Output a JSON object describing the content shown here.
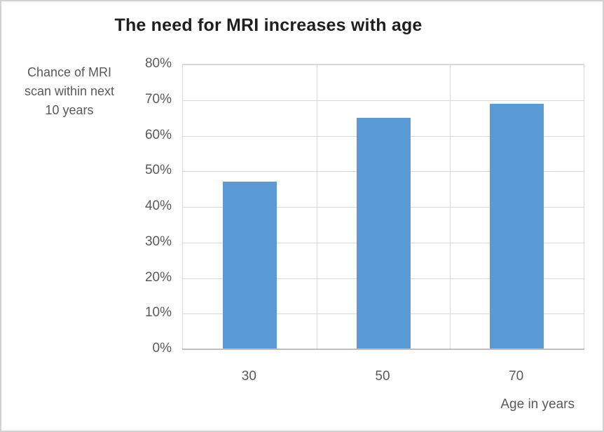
{
  "chart": {
    "title": "The need for MRI increases with age",
    "y_axis_title": {
      "line1": "Chance of MRI",
      "line2": "scan within next",
      "line3": "10 years"
    },
    "x_axis_title": "Age in years"
  },
  "chart_data": {
    "type": "bar",
    "title": "The need for MRI increases with age",
    "categories": [
      "30",
      "50",
      "70"
    ],
    "values": [
      47,
      65,
      69
    ],
    "xlabel": "Age in years",
    "ylabel": "Chance of MRI scan within next 10 years",
    "ylim": [
      0,
      80
    ],
    "y_tick_labels": [
      "0%",
      "10%",
      "20%",
      "30%",
      "40%",
      "50%",
      "60%",
      "70%",
      "80%"
    ],
    "y_tick_step": 10,
    "grid": true,
    "legend": "none",
    "bar_color": "#5b9bd5",
    "gridline_color": "#d9d9d9",
    "axis_line_color": "#bfbfbf",
    "label_color": "#595959",
    "title_color": "#1f1f1f"
  }
}
